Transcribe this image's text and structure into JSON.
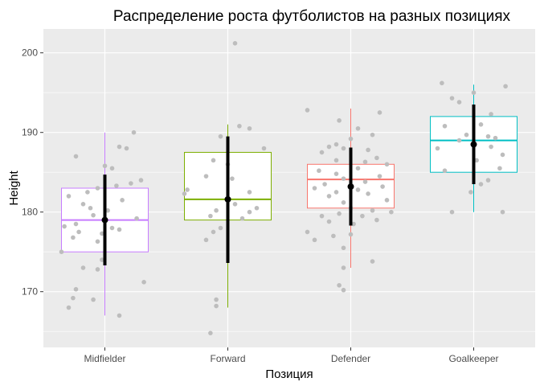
{
  "chart_data": {
    "type": "boxplot",
    "title": "Распределение роста футболистов на разных позициях",
    "xlabel": "Позиция",
    "ylabel": "Height",
    "ylim": [
      163,
      203
    ],
    "yticks": [
      170,
      180,
      190,
      200
    ],
    "categories": [
      "Midfielder",
      "Forward",
      "Defender",
      "Goalkeeper"
    ],
    "colors": {
      "Midfielder": "#c77cff",
      "Forward": "#7cae00",
      "Defender": "#f8766d",
      "Goalkeeper": "#00bfc4",
      "points": "#bdbdbd",
      "summary": "#000000",
      "panel": "#ebebeb"
    },
    "boxes": [
      {
        "category": "Midfielder",
        "whisker_low": 167,
        "q1": 175,
        "median": 179,
        "q3": 183,
        "whisker_high": 190
      },
      {
        "category": "Forward",
        "whisker_low": 168,
        "q1": 179,
        "median": 181.6,
        "q3": 187.5,
        "whisker_high": 191
      },
      {
        "category": "Defender",
        "whisker_low": 173,
        "q1": 180.5,
        "median": 184.1,
        "q3": 186,
        "whisker_high": 193
      },
      {
        "category": "Goalkeeper",
        "whisker_low": 180,
        "q1": 185,
        "median": 189,
        "q3": 192,
        "whisker_high": 196
      }
    ],
    "summary": [
      {
        "category": "Midfielder",
        "mean": 179,
        "low": 173.3,
        "high": 184.7
      },
      {
        "category": "Forward",
        "mean": 181.6,
        "low": 173.6,
        "high": 189.5
      },
      {
        "category": "Defender",
        "mean": 183.2,
        "low": 178.3,
        "high": 188.1
      },
      {
        "category": "Goalkeeper",
        "mean": 188.5,
        "low": 183.5,
        "high": 193.5
      }
    ],
    "points": [
      {
        "category": "Midfielder",
        "jitter": 0.2,
        "value": 190
      },
      {
        "category": "Midfielder",
        "jitter": -0.2,
        "value": 187
      },
      {
        "category": "Midfielder",
        "jitter": 0.1,
        "value": 188.2
      },
      {
        "category": "Midfielder",
        "jitter": 0.15,
        "value": 188
      },
      {
        "category": "Midfielder",
        "jitter": 0.0,
        "value": 185.8
      },
      {
        "category": "Midfielder",
        "jitter": 0.05,
        "value": 185.5
      },
      {
        "category": "Midfielder",
        "jitter": 0.25,
        "value": 184
      },
      {
        "category": "Midfielder",
        "jitter": 0.18,
        "value": 183.6
      },
      {
        "category": "Midfielder",
        "jitter": -0.05,
        "value": 183
      },
      {
        "category": "Midfielder",
        "jitter": 0.08,
        "value": 183.3
      },
      {
        "category": "Midfielder",
        "jitter": -0.12,
        "value": 182.5
      },
      {
        "category": "Midfielder",
        "jitter": -0.25,
        "value": 182
      },
      {
        "category": "Midfielder",
        "jitter": 0.12,
        "value": 181.5
      },
      {
        "category": "Midfielder",
        "jitter": -0.15,
        "value": 181
      },
      {
        "category": "Midfielder",
        "jitter": -0.1,
        "value": 180.5
      },
      {
        "category": "Midfielder",
        "jitter": 0.02,
        "value": 180.2
      },
      {
        "category": "Midfielder",
        "jitter": -0.08,
        "value": 179.6
      },
      {
        "category": "Midfielder",
        "jitter": 0.22,
        "value": 179.2
      },
      {
        "category": "Midfielder",
        "jitter": -0.2,
        "value": 178.5
      },
      {
        "category": "Midfielder",
        "jitter": -0.28,
        "value": 178.2
      },
      {
        "category": "Midfielder",
        "jitter": 0.05,
        "value": 178
      },
      {
        "category": "Midfielder",
        "jitter": 0.1,
        "value": 177.8
      },
      {
        "category": "Midfielder",
        "jitter": -0.18,
        "value": 177.5
      },
      {
        "category": "Midfielder",
        "jitter": -0.02,
        "value": 177.3
      },
      {
        "category": "Midfielder",
        "jitter": -0.22,
        "value": 176.8
      },
      {
        "category": "Midfielder",
        "jitter": -0.05,
        "value": 176.3
      },
      {
        "category": "Midfielder",
        "jitter": -0.3,
        "value": 175
      },
      {
        "category": "Midfielder",
        "jitter": -0.02,
        "value": 174
      },
      {
        "category": "Midfielder",
        "jitter": -0.15,
        "value": 173
      },
      {
        "category": "Midfielder",
        "jitter": -0.05,
        "value": 172.8
      },
      {
        "category": "Midfielder",
        "jitter": 0.27,
        "value": 171.2
      },
      {
        "category": "Midfielder",
        "jitter": -0.2,
        "value": 170.3
      },
      {
        "category": "Midfielder",
        "jitter": -0.22,
        "value": 169.2
      },
      {
        "category": "Midfielder",
        "jitter": -0.08,
        "value": 169
      },
      {
        "category": "Midfielder",
        "jitter": -0.25,
        "value": 168
      },
      {
        "category": "Midfielder",
        "jitter": 0.1,
        "value": 167
      },
      {
        "category": "Forward",
        "jitter": 0.05,
        "value": 201.2
      },
      {
        "category": "Forward",
        "jitter": 0.08,
        "value": 190.8
      },
      {
        "category": "Forward",
        "jitter": 0.15,
        "value": 190.5
      },
      {
        "category": "Forward",
        "jitter": -0.05,
        "value": 189.5
      },
      {
        "category": "Forward",
        "jitter": 0.25,
        "value": 188
      },
      {
        "category": "Forward",
        "jitter": -0.1,
        "value": 186.5
      },
      {
        "category": "Forward",
        "jitter": 0.0,
        "value": 186
      },
      {
        "category": "Forward",
        "jitter": -0.15,
        "value": 184.5
      },
      {
        "category": "Forward",
        "jitter": 0.03,
        "value": 184.2
      },
      {
        "category": "Forward",
        "jitter": 0.15,
        "value": 182.5
      },
      {
        "category": "Forward",
        "jitter": -0.28,
        "value": 182.8
      },
      {
        "category": "Forward",
        "jitter": -0.3,
        "value": 182.3
      },
      {
        "category": "Forward",
        "jitter": 0.05,
        "value": 181
      },
      {
        "category": "Forward",
        "jitter": -0.08,
        "value": 180.2
      },
      {
        "category": "Forward",
        "jitter": 0.2,
        "value": 180.5
      },
      {
        "category": "Forward",
        "jitter": 0.15,
        "value": 180
      },
      {
        "category": "Forward",
        "jitter": -0.12,
        "value": 179.5
      },
      {
        "category": "Forward",
        "jitter": 0.1,
        "value": 179.2
      },
      {
        "category": "Forward",
        "jitter": -0.05,
        "value": 178
      },
      {
        "category": "Forward",
        "jitter": -0.1,
        "value": 177.5
      },
      {
        "category": "Forward",
        "jitter": -0.15,
        "value": 176.5
      },
      {
        "category": "Forward",
        "jitter": -0.08,
        "value": 169
      },
      {
        "category": "Forward",
        "jitter": -0.08,
        "value": 168.2
      },
      {
        "category": "Forward",
        "jitter": -0.12,
        "value": 164.8
      },
      {
        "category": "Defender",
        "jitter": 0.2,
        "value": 192.5
      },
      {
        "category": "Defender",
        "jitter": -0.3,
        "value": 192.8
      },
      {
        "category": "Defender",
        "jitter": -0.08,
        "value": 191.5
      },
      {
        "category": "Defender",
        "jitter": 0.05,
        "value": 190.5
      },
      {
        "category": "Defender",
        "jitter": 0.15,
        "value": 189.7
      },
      {
        "category": "Defender",
        "jitter": 0.0,
        "value": 189.2
      },
      {
        "category": "Defender",
        "jitter": -0.1,
        "value": 188.5
      },
      {
        "category": "Defender",
        "jitter": -0.15,
        "value": 188.2
      },
      {
        "category": "Defender",
        "jitter": -0.05,
        "value": 188
      },
      {
        "category": "Defender",
        "jitter": -0.2,
        "value": 187.5
      },
      {
        "category": "Defender",
        "jitter": 0.12,
        "value": 187.8
      },
      {
        "category": "Defender",
        "jitter": 0.18,
        "value": 186.8
      },
      {
        "category": "Defender",
        "jitter": -0.1,
        "value": 186.5
      },
      {
        "category": "Defender",
        "jitter": 0.1,
        "value": 186.3
      },
      {
        "category": "Defender",
        "jitter": 0.25,
        "value": 186
      },
      {
        "category": "Defender",
        "jitter": 0.05,
        "value": 185.5
      },
      {
        "category": "Defender",
        "jitter": -0.22,
        "value": 185.2
      },
      {
        "category": "Defender",
        "jitter": -0.1,
        "value": 184.8
      },
      {
        "category": "Defender",
        "jitter": 0.2,
        "value": 184.5
      },
      {
        "category": "Defender",
        "jitter": -0.05,
        "value": 184.2
      },
      {
        "category": "Defender",
        "jitter": 0.1,
        "value": 183.8
      },
      {
        "category": "Defender",
        "jitter": -0.18,
        "value": 183.5
      },
      {
        "category": "Defender",
        "jitter": 0.22,
        "value": 183.2
      },
      {
        "category": "Defender",
        "jitter": -0.25,
        "value": 183
      },
      {
        "category": "Defender",
        "jitter": 0.05,
        "value": 182.8
      },
      {
        "category": "Defender",
        "jitter": -0.1,
        "value": 182.5
      },
      {
        "category": "Defender",
        "jitter": 0.12,
        "value": 182.3
      },
      {
        "category": "Defender",
        "jitter": -0.15,
        "value": 182
      },
      {
        "category": "Defender",
        "jitter": 0.25,
        "value": 181.5
      },
      {
        "category": "Defender",
        "jitter": -0.05,
        "value": 181.2
      },
      {
        "category": "Defender",
        "jitter": 0.0,
        "value": 180.5
      },
      {
        "category": "Defender",
        "jitter": 0.15,
        "value": 180.2
      },
      {
        "category": "Defender",
        "jitter": 0.28,
        "value": 180
      },
      {
        "category": "Defender",
        "jitter": -0.08,
        "value": 179.8
      },
      {
        "category": "Defender",
        "jitter": 0.08,
        "value": 179.5
      },
      {
        "category": "Defender",
        "jitter": -0.2,
        "value": 179.5
      },
      {
        "category": "Defender",
        "jitter": 0.18,
        "value": 179
      },
      {
        "category": "Defender",
        "jitter": -0.15,
        "value": 178.8
      },
      {
        "category": "Defender",
        "jitter": 0.02,
        "value": 178.5
      },
      {
        "category": "Defender",
        "jitter": -0.3,
        "value": 177.5
      },
      {
        "category": "Defender",
        "jitter": -0.12,
        "value": 177
      },
      {
        "category": "Defender",
        "jitter": 0.0,
        "value": 177.2
      },
      {
        "category": "Defender",
        "jitter": -0.25,
        "value": 176.5
      },
      {
        "category": "Defender",
        "jitter": -0.05,
        "value": 175.5
      },
      {
        "category": "Defender",
        "jitter": 0.15,
        "value": 173.8
      },
      {
        "category": "Defender",
        "jitter": -0.05,
        "value": 173
      },
      {
        "category": "Defender",
        "jitter": -0.08,
        "value": 170.8
      },
      {
        "category": "Defender",
        "jitter": -0.05,
        "value": 170.2
      },
      {
        "category": "Goalkeeper",
        "jitter": -0.22,
        "value": 196.2
      },
      {
        "category": "Goalkeeper",
        "jitter": 0.22,
        "value": 195.8
      },
      {
        "category": "Goalkeeper",
        "jitter": 0.0,
        "value": 195
      },
      {
        "category": "Goalkeeper",
        "jitter": -0.15,
        "value": 194.3
      },
      {
        "category": "Goalkeeper",
        "jitter": -0.1,
        "value": 193.8
      },
      {
        "category": "Goalkeeper",
        "jitter": 0.12,
        "value": 192.3
      },
      {
        "category": "Goalkeeper",
        "jitter": 0.05,
        "value": 191
      },
      {
        "category": "Goalkeeper",
        "jitter": -0.2,
        "value": 190.8
      },
      {
        "category": "Goalkeeper",
        "jitter": 0.1,
        "value": 189.5
      },
      {
        "category": "Goalkeeper",
        "jitter": -0.05,
        "value": 189.7
      },
      {
        "category": "Goalkeeper",
        "jitter": 0.15,
        "value": 189.3
      },
      {
        "category": "Goalkeeper",
        "jitter": -0.1,
        "value": 189
      },
      {
        "category": "Goalkeeper",
        "jitter": 0.12,
        "value": 188.2
      },
      {
        "category": "Goalkeeper",
        "jitter": -0.25,
        "value": 188
      },
      {
        "category": "Goalkeeper",
        "jitter": 0.2,
        "value": 187.2
      },
      {
        "category": "Goalkeeper",
        "jitter": 0.02,
        "value": 186.5
      },
      {
        "category": "Goalkeeper",
        "jitter": -0.2,
        "value": 185.2
      },
      {
        "category": "Goalkeeper",
        "jitter": 0.18,
        "value": 185.5
      },
      {
        "category": "Goalkeeper",
        "jitter": 0.1,
        "value": 184
      },
      {
        "category": "Goalkeeper",
        "jitter": 0.05,
        "value": 183.5
      },
      {
        "category": "Goalkeeper",
        "jitter": -0.02,
        "value": 182.5
      },
      {
        "category": "Goalkeeper",
        "jitter": -0.15,
        "value": 180
      },
      {
        "category": "Goalkeeper",
        "jitter": 0.2,
        "value": 180
      }
    ]
  }
}
